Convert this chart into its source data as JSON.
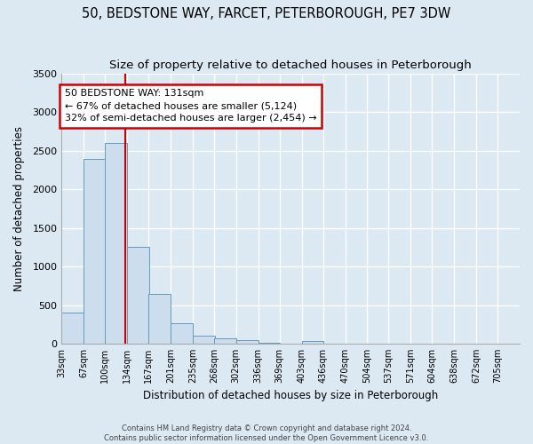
{
  "title": "50, BEDSTONE WAY, FARCET, PETERBOROUGH, PE7 3DW",
  "subtitle": "Size of property relative to detached houses in Peterborough",
  "xlabel": "Distribution of detached houses by size in Peterborough",
  "ylabel": "Number of detached properties",
  "bin_labels": [
    "33sqm",
    "67sqm",
    "100sqm",
    "134sqm",
    "167sqm",
    "201sqm",
    "235sqm",
    "268sqm",
    "302sqm",
    "336sqm",
    "369sqm",
    "403sqm",
    "436sqm",
    "470sqm",
    "504sqm",
    "537sqm",
    "571sqm",
    "604sqm",
    "638sqm",
    "672sqm",
    "705sqm"
  ],
  "bin_edges": [
    33,
    67,
    100,
    134,
    167,
    201,
    235,
    268,
    302,
    336,
    369,
    403,
    436,
    470,
    504,
    537,
    571,
    604,
    638,
    672,
    705
  ],
  "bar_heights": [
    400,
    2400,
    2600,
    1250,
    640,
    260,
    100,
    65,
    40,
    10,
    0,
    30,
    0,
    0,
    0,
    0,
    0,
    0,
    0,
    0
  ],
  "bar_color": "#ccdded",
  "bar_edge_color": "#6699bb",
  "red_line_x": 131,
  "annotation_title": "50 BEDSTONE WAY: 131sqm",
  "annotation_line1": "← 67% of detached houses are smaller (5,124)",
  "annotation_line2": "32% of semi-detached houses are larger (2,454) →",
  "annotation_box_color": "#ffffff",
  "annotation_box_edge": "#cc0000",
  "ylim": [
    0,
    3500
  ],
  "yticks": [
    0,
    500,
    1000,
    1500,
    2000,
    2500,
    3000,
    3500
  ],
  "footer1": "Contains HM Land Registry data © Crown copyright and database right 2024.",
  "footer2": "Contains public sector information licensed under the Open Government Licence v3.0.",
  "bg_color": "#dce8f2",
  "plot_bg_color": "#dce8f2",
  "grid_color": "#ffffff",
  "title_fontsize": 10.5,
  "subtitle_fontsize": 9.5
}
